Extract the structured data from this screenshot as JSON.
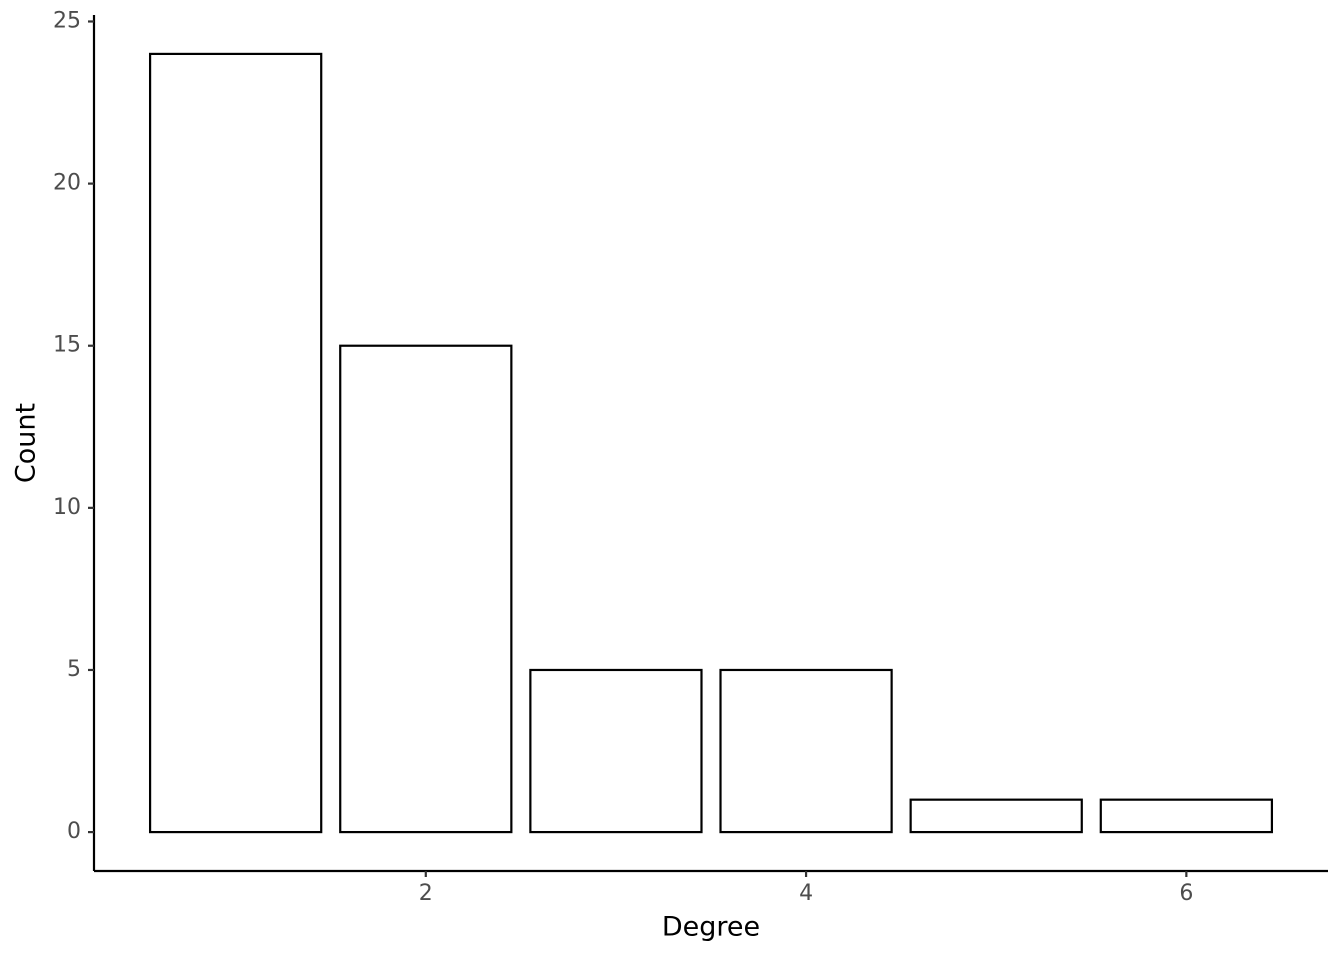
{
  "chart_data": {
    "type": "bar",
    "x_label": "Degree",
    "y_label": "Count",
    "x": [
      1,
      2,
      3,
      4,
      5,
      6
    ],
    "values": [
      24,
      15,
      5,
      5,
      1,
      1
    ],
    "color": "#ffffff",
    "edge_color": "#000000",
    "xlim": [
      0.255,
      6.745
    ],
    "xticks": [
      2,
      4,
      6
    ],
    "ylim": [
      -1.2,
      25.2
    ],
    "yticks": [
      0,
      5,
      10,
      15,
      20,
      25
    ],
    "grid": false
  }
}
